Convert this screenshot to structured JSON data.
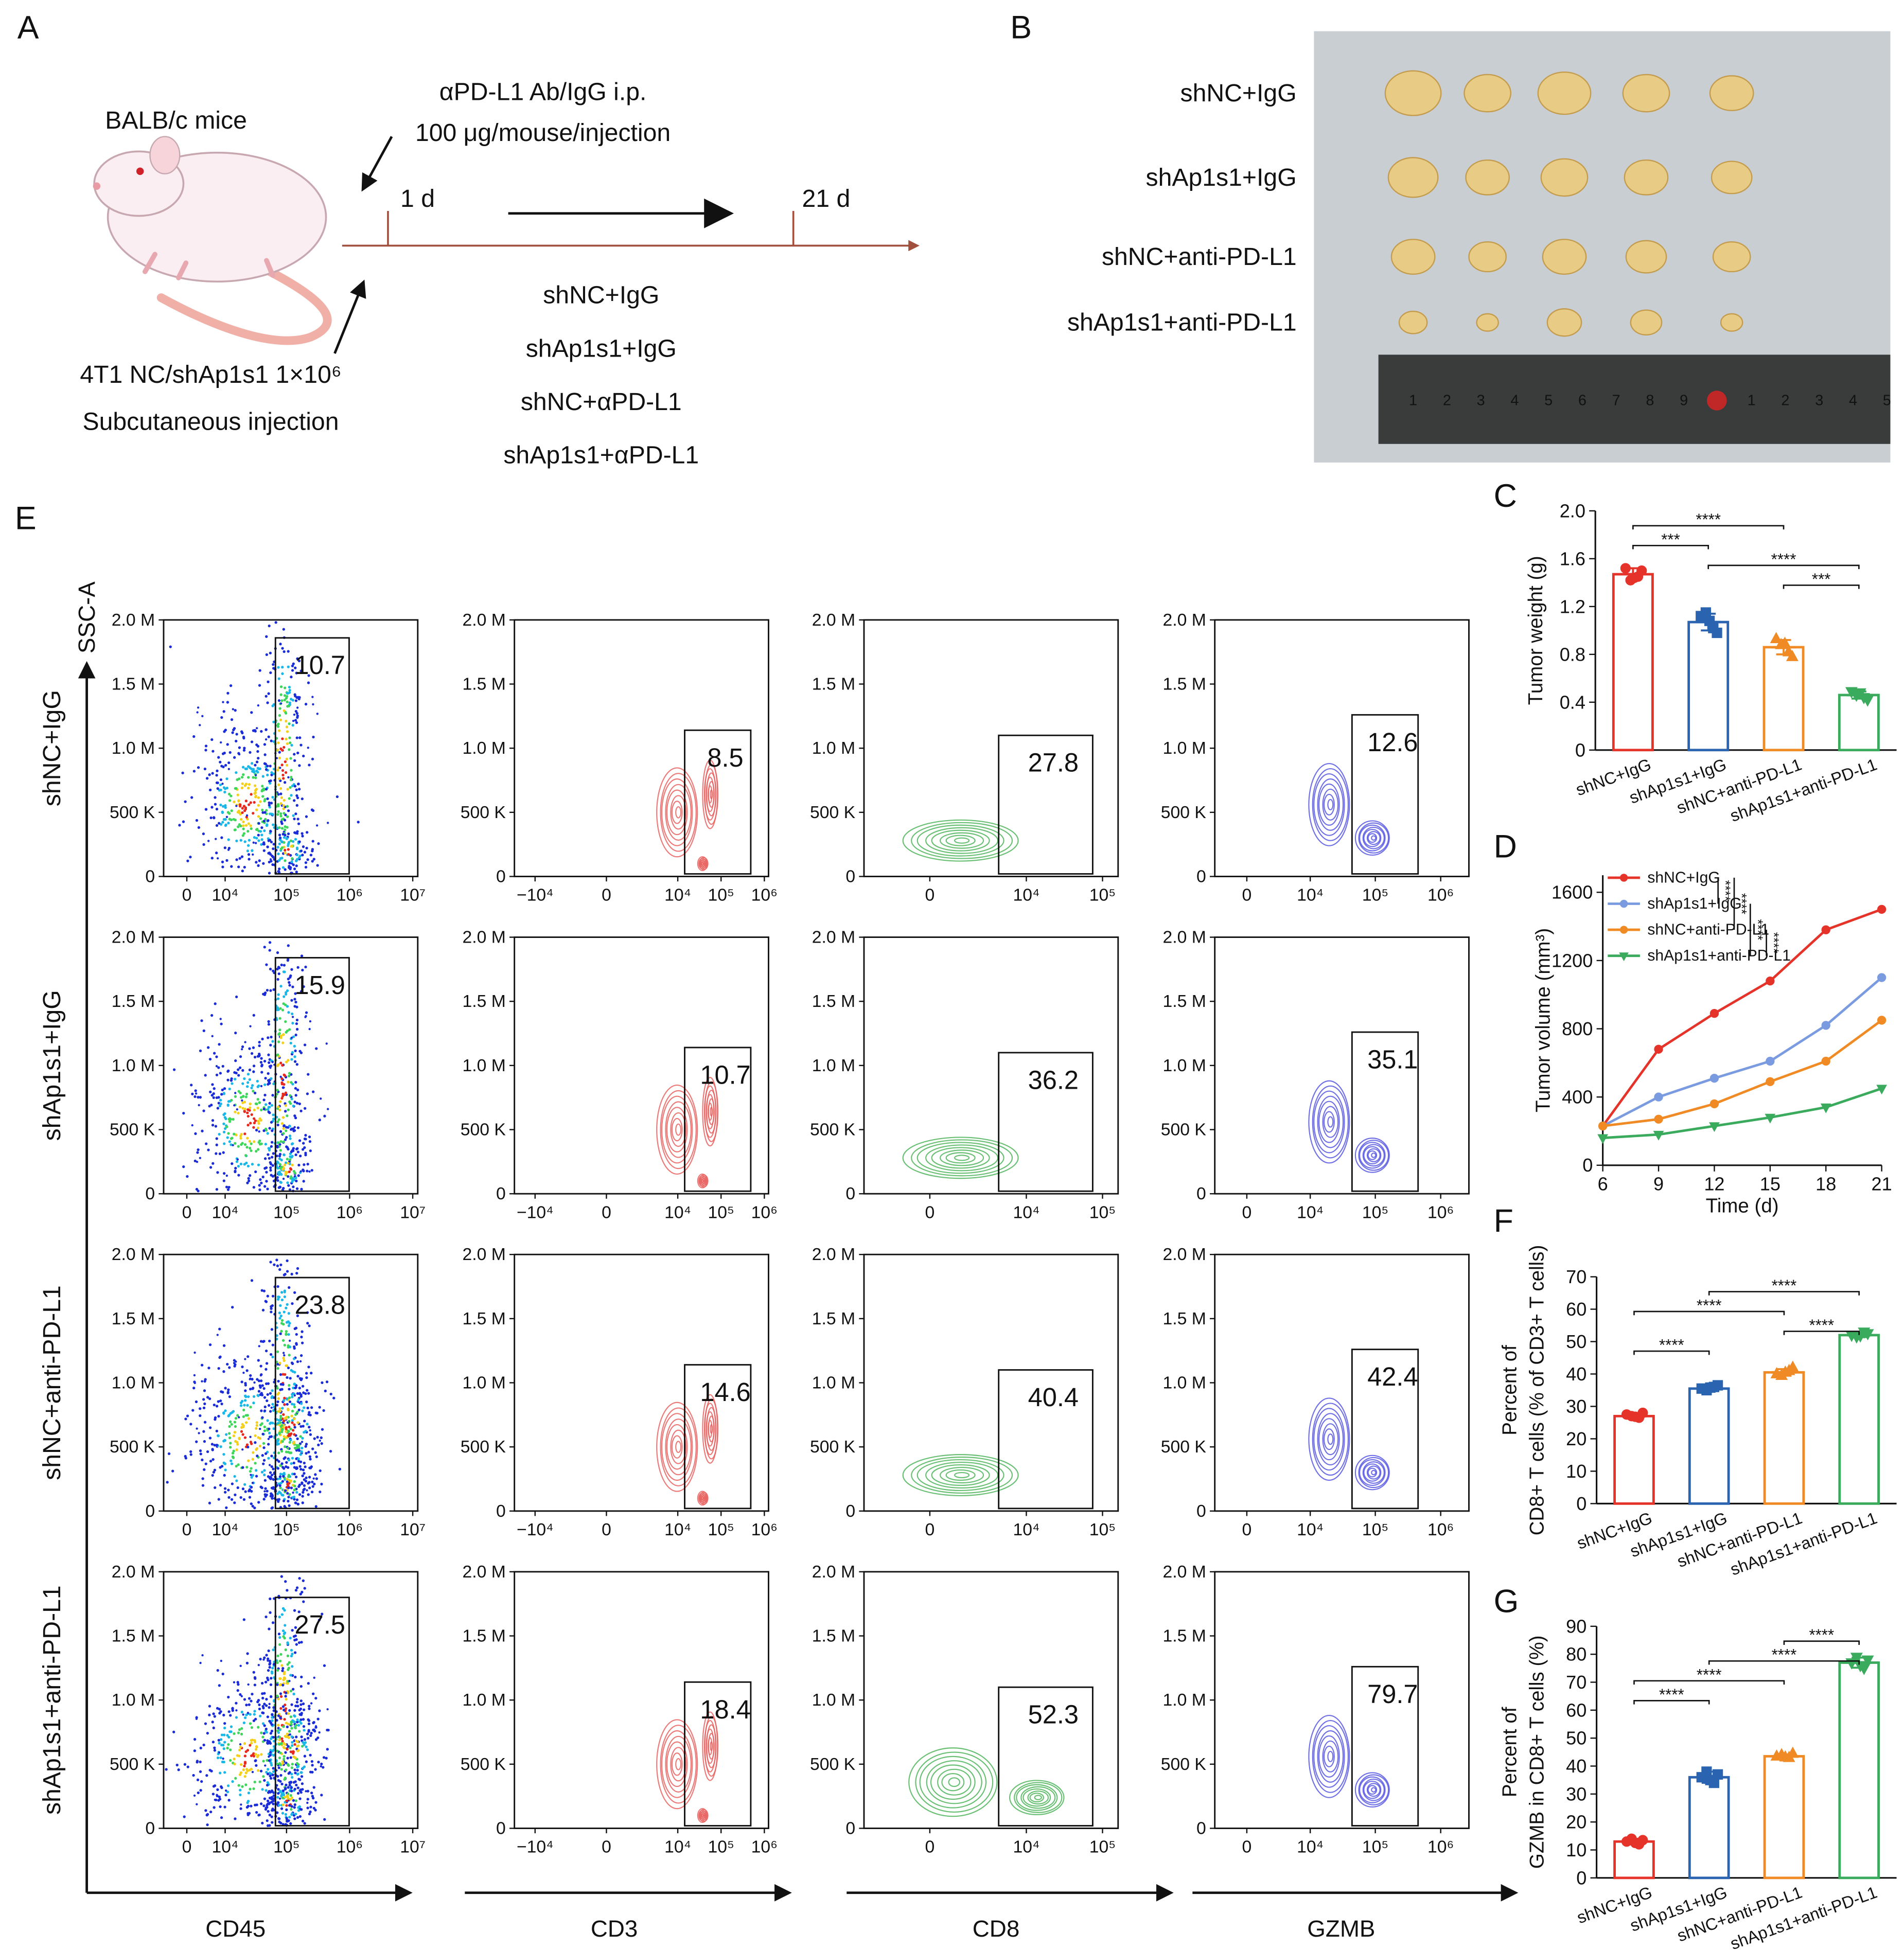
{
  "schematic": {
    "label": "A",
    "mouse": "BALB/c mice",
    "treatment": [
      "αPD-L1 Ab/IgG i.p.",
      "100 μg/mouse/injection"
    ],
    "timepoints": [
      "1 d",
      "21 d"
    ],
    "groups": [
      "shNC+IgG",
      "shAp1s1+IgG",
      "shNC+αPD-L1",
      "shAp1s1+αPD-L1"
    ],
    "injection": [
      "4T1 NC/shAp1s1 1×10⁶",
      "Subcutaneous injection"
    ]
  },
  "photo": {
    "label": "B",
    "groups": [
      "shNC+IgG",
      "shAp1s1+IgG",
      "shNC+anti-PD-L1",
      "shAp1s1+anti-PD-L1"
    ],
    "ruler": [
      "1",
      "2",
      "3",
      "4",
      "5",
      "6",
      "7",
      "8",
      "9",
      "1",
      "2",
      "3",
      "4",
      "5"
    ]
  },
  "flow": {
    "label": "E",
    "y_axis": "SSC-A",
    "xscale": "biexponential",
    "ylim": [
      0,
      2000000
    ],
    "yticks": [
      0,
      {
        "value": 500000,
        "label": "500 K"
      },
      {
        "value": 1000000,
        "label": "1.0 M"
      },
      {
        "value": 1500000,
        "label": "1.5 M"
      },
      {
        "value": 2000000,
        "label": "2.0 M"
      }
    ],
    "columns": [
      {
        "marker": "CD45",
        "color": "density",
        "xlim": [
          -5000,
          12000000
        ],
        "xticks": [
          0,
          {
            "value": 10000,
            "label": "10⁴"
          },
          {
            "value": 100000,
            "label": "10⁵"
          },
          {
            "value": 1000000,
            "label": "10⁶"
          },
          {
            "value": 10000000,
            "label": "10⁷"
          }
        ]
      },
      {
        "marker": "CD3",
        "color": "#e8625f",
        "xlim": [
          -30000,
          1250000
        ],
        "xticks": [
          {
            "value": -10000,
            "label": "−10⁴"
          },
          0,
          {
            "value": 10000,
            "label": "10⁴"
          },
          {
            "value": 100000,
            "label": "10⁵"
          },
          {
            "value": 1000000,
            "label": "10⁶"
          }
        ]
      },
      {
        "marker": "CD8",
        "color": "#4fb45a",
        "xlim": [
          -3900,
          160000
        ],
        "xticks": [
          0,
          {
            "value": 10000,
            "label": "10⁴"
          },
          {
            "value": 100000,
            "label": "10⁵"
          }
        ]
      },
      {
        "marker": "GZMB",
        "color": "#5656e2",
        "xlim": [
          -3000,
          2700000
        ],
        "xticks": [
          0,
          {
            "value": 10000,
            "label": "10⁴"
          },
          {
            "value": 100000,
            "label": "10⁵"
          },
          {
            "value": 1000000,
            "label": "10⁶"
          }
        ]
      }
    ],
    "rows": [
      {
        "name": "shNC+IgG",
        "gates": [
          10.7,
          8.5,
          27.8,
          12.6
        ]
      },
      {
        "name": "shAp1s1+IgG",
        "gates": [
          15.9,
          10.7,
          36.2,
          35.1
        ]
      },
      {
        "name": "shNC+anti-PD-L1",
        "gates": [
          23.8,
          14.6,
          40.4,
          42.4
        ]
      },
      {
        "name": "shAp1s1+anti-PD-L1",
        "gates": [
          27.5,
          18.4,
          52.3,
          79.7
        ]
      }
    ]
  },
  "chart_data": [
    {
      "label": "C",
      "type": "bar",
      "ylabel": [
        "Tumor weight (g)"
      ],
      "categories": [
        "shNC+IgG",
        "shAp1s1+IgG",
        "shNC+anti-PD-L1",
        "shAp1s1+anti-PD-L1"
      ],
      "colors": [
        "#e5332a",
        "#2a64b0",
        "#f08a24",
        "#3aaa5c"
      ],
      "markers": [
        "circle",
        "square",
        "triangle",
        "triangle-down"
      ],
      "values": [
        1.47,
        1.07,
        0.86,
        0.46
      ],
      "errors": [
        0.05,
        0.07,
        0.06,
        0.03
      ],
      "points": [
        [
          1.52,
          1.45,
          1.42,
          1.5,
          1.44
        ],
        [
          1.12,
          1.02,
          1.15,
          0.98,
          1.08
        ],
        [
          0.93,
          0.82,
          0.88,
          0.78,
          0.89
        ],
        [
          0.49,
          0.44,
          0.46,
          0.42,
          0.48
        ]
      ],
      "ylim": [
        0,
        2
      ],
      "yticks": [
        0,
        0.4,
        0.8,
        1.2,
        1.6,
        {
          "value": 2,
          "label": "2.0"
        }
      ],
      "annotations": [
        {
          "label": "****",
          "groups": [
            0,
            2
          ]
        },
        {
          "label": "***",
          "groups": [
            0,
            1
          ]
        },
        {
          "label": "****",
          "groups": [
            1,
            3
          ]
        },
        {
          "label": "***",
          "groups": [
            2,
            3
          ]
        }
      ]
    },
    {
      "label": "D",
      "type": "line",
      "ylabel": [
        "Tumor volume (mm³)"
      ],
      "xlabel": "Time (d)",
      "x": [
        6,
        9,
        12,
        15,
        18,
        21
      ],
      "xlim": [
        6,
        21
      ],
      "xticks": [
        6,
        9,
        12,
        15,
        18,
        21
      ],
      "ylim": [
        0,
        1700
      ],
      "yticks": [
        0,
        400,
        800,
        1200,
        1600
      ],
      "legend": "upper left",
      "series": [
        {
          "name": "shNC+IgG",
          "color": "#e5332a",
          "marker": "circle",
          "values": [
            230,
            680,
            890,
            1080,
            1380,
            1500
          ]
        },
        {
          "name": "shAp1s1+IgG",
          "color": "#7b9be0",
          "marker": "circle",
          "values": [
            230,
            400,
            510,
            610,
            820,
            1100
          ]
        },
        {
          "name": "shNC+anti-PD-L1",
          "color": "#f08a24",
          "marker": "circle",
          "values": [
            230,
            270,
            360,
            490,
            610,
            850
          ]
        },
        {
          "name": "shAp1s1+anti-PD-L1",
          "color": "#3aaa5c",
          "marker": "triangle-down",
          "values": [
            160,
            180,
            230,
            280,
            340,
            450
          ]
        }
      ],
      "annotations": [
        {
          "label": "****",
          "series": [
            0,
            1
          ]
        },
        {
          "label": "****",
          "series": [
            0,
            2
          ]
        },
        {
          "label": "****",
          "series": [
            1,
            3
          ]
        },
        {
          "label": "****",
          "series": [
            2,
            3
          ]
        }
      ]
    },
    {
      "label": "F",
      "type": "bar",
      "ylabel": [
        "Percent of",
        "CD8+ T cells (% of CD3+ T cells)"
      ],
      "categories": [
        "shNC+IgG",
        "shAp1s1+IgG",
        "shNC+anti-PD-L1",
        "shAp1s1+anti-PD-L1"
      ],
      "colors": [
        "#e5332a",
        "#2a64b0",
        "#f08a24",
        "#3aaa5c"
      ],
      "markers": [
        "circle",
        "square",
        "triangle",
        "triangle-down"
      ],
      "values": [
        27,
        35.5,
        40.5,
        52
      ],
      "errors": [
        0.8,
        0.7,
        1,
        0.6
      ],
      "points": [
        [
          27.5,
          26.5,
          27,
          28,
          26.8
        ],
        [
          35.5,
          36,
          35,
          36.5,
          35.8
        ],
        [
          40,
          41,
          39.5,
          42,
          40.5
        ],
        [
          52,
          53,
          51.5,
          52.5,
          51.8
        ]
      ],
      "ylim": [
        0,
        70
      ],
      "yticks": [
        0,
        10,
        20,
        30,
        40,
        50,
        60,
        70
      ],
      "annotations": [
        {
          "label": "****",
          "groups": [
            1,
            3
          ]
        },
        {
          "label": "****",
          "groups": [
            0,
            2
          ]
        },
        {
          "label": "****",
          "groups": [
            2,
            3
          ]
        },
        {
          "label": "****",
          "groups": [
            0,
            1
          ]
        }
      ]
    },
    {
      "label": "G",
      "type": "bar",
      "ylabel": [
        "Percent of",
        "GZMB in CD8+ T cells (%)"
      ],
      "categories": [
        "shNC+IgG",
        "shAp1s1+IgG",
        "shNC+anti-PD-L1",
        "shAp1s1+anti-PD-L1"
      ],
      "colors": [
        "#e5332a",
        "#2a64b0",
        "#f08a24",
        "#3aaa5c"
      ],
      "markers": [
        "circle",
        "square",
        "triangle",
        "triangle-down"
      ],
      "values": [
        13,
        36,
        43.5,
        77
      ],
      "errors": [
        1,
        2,
        0.6,
        1.8
      ],
      "points": [
        [
          13,
          12,
          14,
          13.5,
          12.5
        ],
        [
          36,
          34,
          38,
          37,
          35
        ],
        [
          43.5,
          43,
          44,
          44.5,
          43.2
        ],
        [
          77,
          75,
          79,
          78,
          76
        ]
      ],
      "ylim": [
        0,
        90
      ],
      "yticks": [
        0,
        10,
        20,
        30,
        40,
        50,
        60,
        70,
        80,
        90
      ],
      "annotations": [
        {
          "label": "****",
          "groups": [
            2,
            3
          ]
        },
        {
          "label": "****",
          "groups": [
            1,
            3
          ]
        },
        {
          "label": "****",
          "groups": [
            0,
            2
          ]
        },
        {
          "label": "****",
          "groups": [
            0,
            1
          ]
        }
      ]
    }
  ]
}
